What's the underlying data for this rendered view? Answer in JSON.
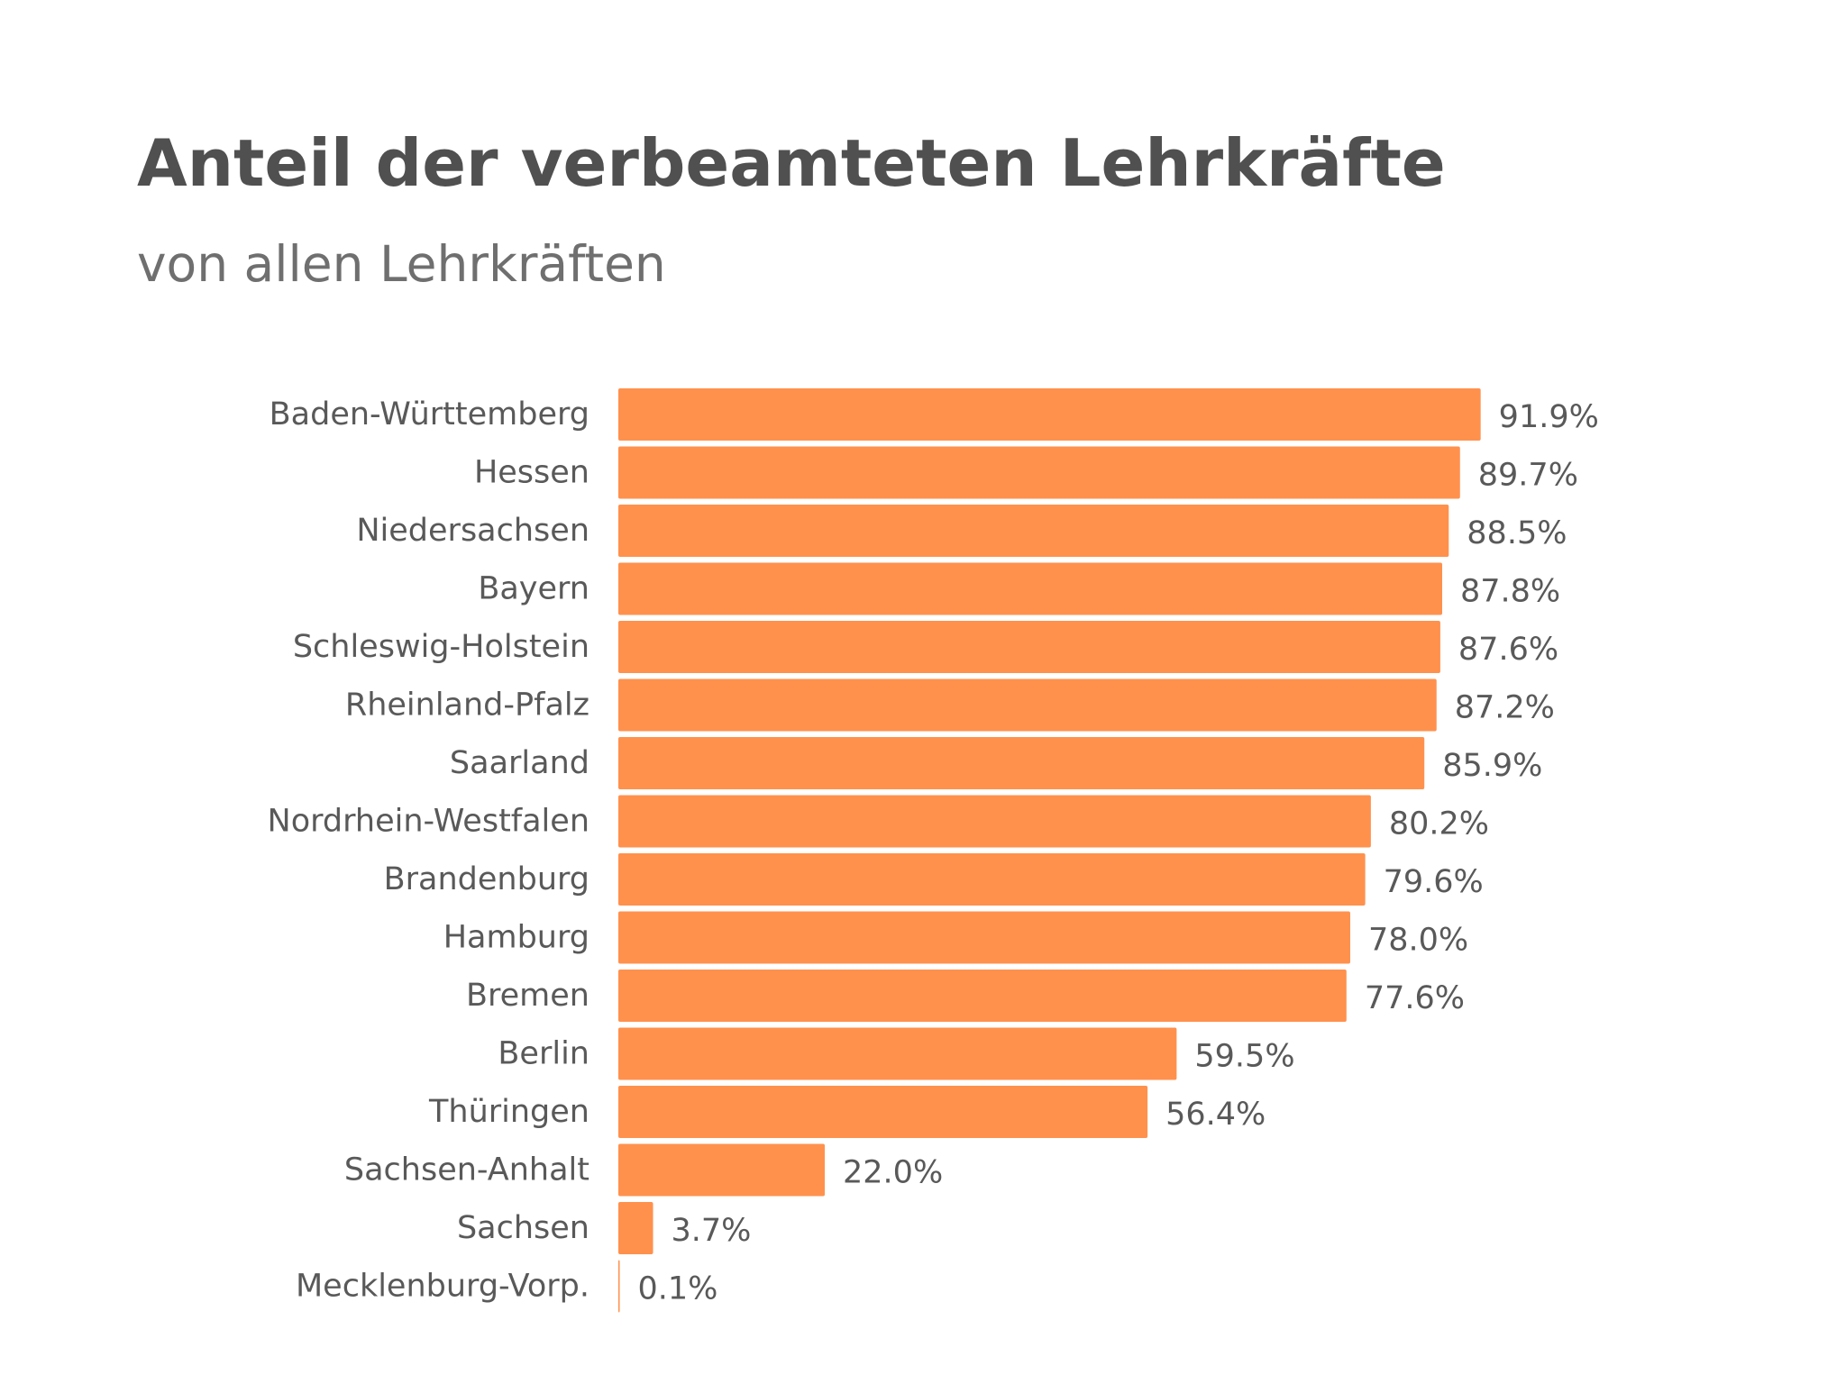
{
  "title": "Anteil der verbeamteten Lehrkräfte",
  "subtitle": "von allen Lehrkräften",
  "colors": {
    "bar": "#ff914d",
    "title": "#505050",
    "subtitle": "#6f6f6f",
    "category_label": "#595959",
    "value_label": "#595959"
  },
  "chart_data": {
    "type": "bar",
    "orientation": "horizontal",
    "title": "Anteil der verbeamteten Lehrkräfte",
    "subtitle": "von allen Lehrkräften",
    "categories": [
      "Baden-Württemberg",
      "Hessen",
      "Niedersachsen",
      "Bayern",
      "Schleswig-Holstein",
      "Rheinland-Pfalz",
      "Saarland",
      "Nordrhein-Westfalen",
      "Brandenburg",
      "Hamburg",
      "Bremen",
      "Berlin",
      "Thüringen",
      "Sachsen-Anhalt",
      "Sachsen",
      "Mecklenburg-Vorp."
    ],
    "values": [
      91.9,
      89.7,
      88.5,
      87.8,
      87.6,
      87.2,
      85.9,
      80.2,
      79.6,
      78.0,
      77.6,
      59.5,
      56.4,
      22.0,
      3.7,
      0.1
    ],
    "value_labels": [
      "91.9%",
      "89.7%",
      "88.5%",
      "87.8%",
      "87.6%",
      "87.2%",
      "85.9%",
      "80.2%",
      "79.6%",
      "78.0%",
      "77.6%",
      "59.5%",
      "56.4%",
      "22.0%",
      "3.7%",
      "0.1%"
    ],
    "unit": "%",
    "xlim": [
      0,
      100
    ],
    "grid": false,
    "legend": "none",
    "xlabel": "",
    "ylabel": ""
  }
}
